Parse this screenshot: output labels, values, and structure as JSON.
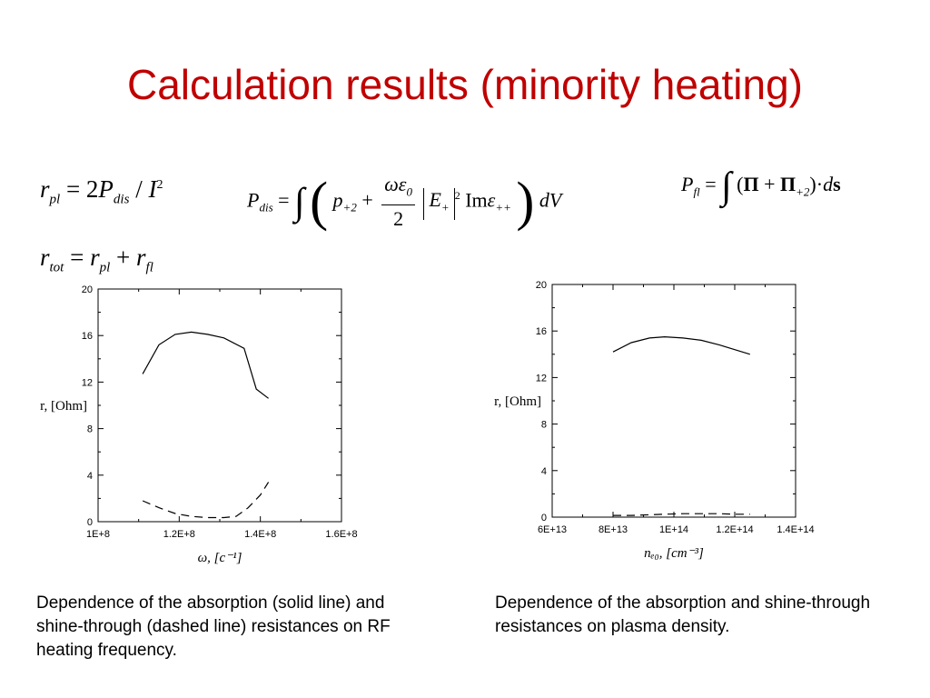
{
  "slide": {
    "title": "Calculation results (minority heating)",
    "captions": [
      "Dependence of the absorption (solid line) and shine-through (dashed line) resistances on RF heating frequency.",
      "Dependence of the absorption and shine-through resistances on plasma density."
    ]
  },
  "equations": {
    "rpl": {
      "lhs": "r",
      "lhs_sub": "pl",
      "op": "=",
      "coef": "2",
      "P": "P",
      "P_sub": "dis",
      "slash": "/",
      "I": "I",
      "I_sup": "2"
    },
    "pdis": {
      "lhs": "P",
      "lhs_sub": "dis",
      "op": "=",
      "integral": "∫",
      "lparen": "(",
      "p": "p",
      "p_sub": "+2",
      "plus": "+",
      "num": "ωε",
      "num_sub": "0",
      "den": "2",
      "E": "E",
      "E_sub": "+",
      "E_sup": "2",
      "Im": "Im",
      "eps": "ε",
      "eps_sub": "++",
      "rparen": ")",
      "dV": "dV"
    },
    "pfl": {
      "lhs": "P",
      "lhs_sub": "fl",
      "op": "=",
      "integral": "∫",
      "lparen": "(",
      "Pi": "Π",
      "plus": "+",
      "Pi2": "Π",
      "Pi2_sub": "+2",
      "rparen": ")",
      "dot": "·",
      "d": "d",
      "s": "s"
    },
    "rtot": {
      "lhs": "r",
      "lhs_sub": "tot",
      "op": "=",
      "a": "r",
      "a_sub": "pl",
      "plus": "+",
      "b": "r",
      "b_sub": "fl"
    }
  },
  "chart_data": [
    {
      "type": "line",
      "xlabel": "ω, [c⁻¹]",
      "ylabel": "r, [Ohm]",
      "x_ticks": [
        "1E+8",
        "1.2E+8",
        "1.4E+8",
        "1.6E+8"
      ],
      "y_ticks": [
        "0",
        "4",
        "8",
        "12",
        "16",
        "20"
      ],
      "xlim": [
        100000000,
        160000000
      ],
      "ylim": [
        0,
        20
      ],
      "series": [
        {
          "style": "solid",
          "x": [
            111000000,
            115000000,
            119000000,
            123000000,
            127000000,
            131000000,
            136000000,
            139000000,
            142000000
          ],
          "y": [
            12.7,
            15.2,
            16.1,
            16.3,
            16.1,
            15.8,
            14.9,
            11.4,
            10.6
          ]
        },
        {
          "style": "dashed",
          "x": [
            111000000,
            115000000,
            119000000,
            123000000,
            127000000,
            131000000,
            134000000,
            137000000,
            140000000,
            142000000
          ],
          "y": [
            1.8,
            1.2,
            0.7,
            0.45,
            0.35,
            0.35,
            0.45,
            1.2,
            2.3,
            3.4
          ]
        }
      ]
    },
    {
      "type": "line",
      "xlabel": "nₑ₀, [cm⁻³]",
      "ylabel": "r, [Ohm]",
      "x_ticks": [
        "6E+13",
        "8E+13",
        "1E+14",
        "1.2E+14",
        "1.4E+14"
      ],
      "y_ticks": [
        "0",
        "4",
        "8",
        "12",
        "16",
        "20"
      ],
      "xlim": [
        60000000000000,
        140000000000000
      ],
      "ylim": [
        0,
        20
      ],
      "series": [
        {
          "style": "solid",
          "x": [
            80000000000000,
            86000000000000,
            92000000000000,
            97000000000000,
            103000000000000,
            109000000000000,
            115000000000000,
            120000000000000,
            125000000000000
          ],
          "y": [
            14.2,
            15.0,
            15.4,
            15.5,
            15.4,
            15.2,
            14.8,
            14.4,
            14.0
          ]
        },
        {
          "style": "dashed",
          "x": [
            80000000000000,
            86000000000000,
            92000000000000,
            97000000000000,
            103000000000000,
            109000000000000,
            115000000000000,
            120000000000000,
            125000000000000
          ],
          "y": [
            0.15,
            0.15,
            0.2,
            0.25,
            0.3,
            0.3,
            0.3,
            0.25,
            0.25
          ]
        }
      ]
    }
  ]
}
